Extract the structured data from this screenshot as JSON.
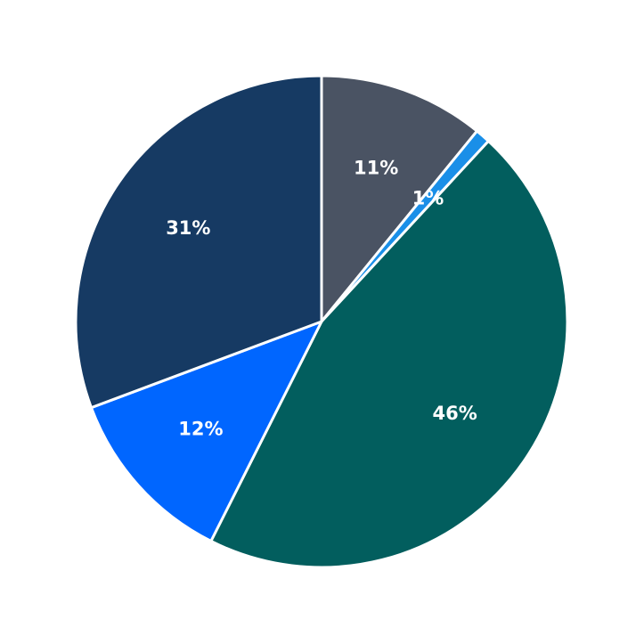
{
  "chart_data": {
    "type": "pie",
    "values": [
      11,
      1,
      46,
      12,
      31
    ],
    "value_labels": [
      "11%",
      "1%",
      "46%",
      "12%",
      "31%"
    ],
    "colors": [
      "#4a5363",
      "#1a8fe8",
      "#025e5e",
      "#0066ff",
      "#163a63"
    ]
  }
}
